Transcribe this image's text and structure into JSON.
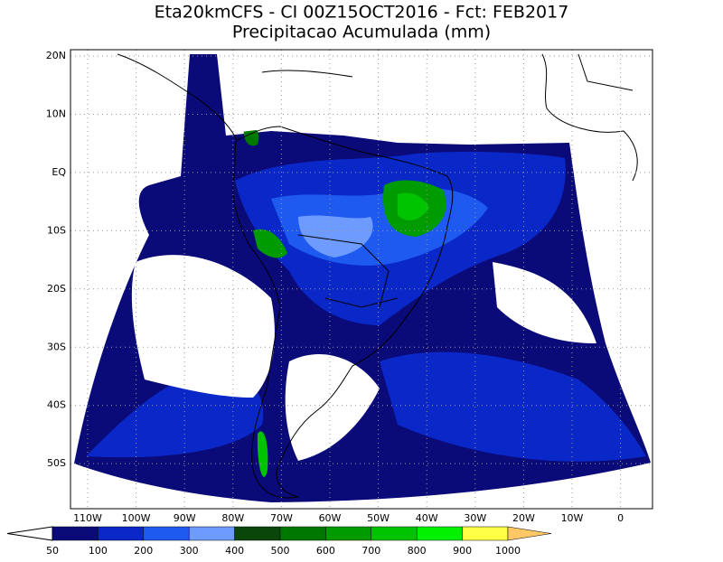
{
  "header": {
    "title": "Eta20kmCFS - CI 00Z15OCT2016 - Fct: FEB2017",
    "subtitle": "Precipitacao Acumulada (mm)"
  },
  "map": {
    "lat_labels": [
      "20N",
      "10N",
      "EQ",
      "10S",
      "20S",
      "30S",
      "40S",
      "50S"
    ],
    "lon_labels": [
      "110W",
      "100W",
      "90W",
      "80W",
      "70W",
      "60W",
      "50W",
      "40W",
      "30W",
      "20W",
      "10W",
      "0"
    ]
  },
  "colorbar": {
    "levels": [
      50,
      100,
      200,
      300,
      400,
      500,
      600,
      700,
      800,
      900,
      1000
    ],
    "colors": [
      "#0a0a78",
      "#0a28c8",
      "#1e5af0",
      "#6e9bff",
      "#0a460a",
      "#007800",
      "#009b00",
      "#00c300",
      "#00f000",
      "#ffff46"
    ],
    "under_color": "#ffffff",
    "over_color": "#ffc864"
  }
}
